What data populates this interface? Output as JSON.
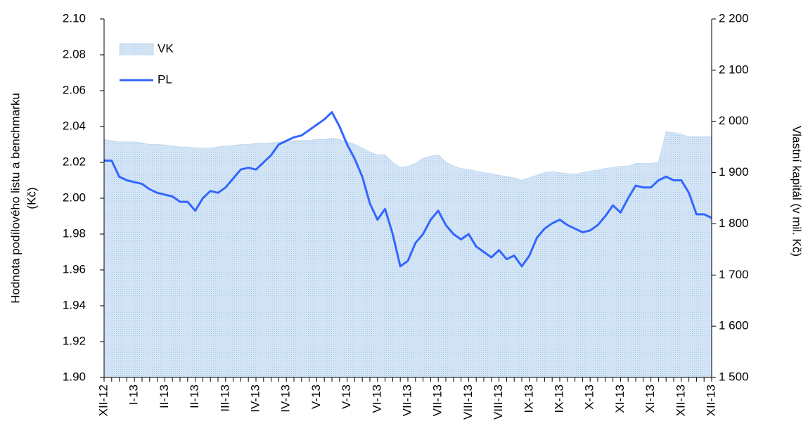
{
  "chart_data": {
    "type": "line",
    "ylabel": [
      "Hodnota podílového listu a benchmarku",
      "(Kč)"
    ],
    "y2label": "Vlastní kapitál (v mil. Kč)",
    "categories": [
      "XII-12",
      null,
      null,
      null,
      "I-13",
      null,
      null,
      null,
      "II-13",
      null,
      null,
      null,
      "II-13",
      null,
      null,
      null,
      "III-13",
      null,
      null,
      null,
      "IV-13",
      null,
      null,
      null,
      "IV-13",
      null,
      null,
      null,
      "V-13",
      null,
      null,
      null,
      "V-13",
      null,
      null,
      null,
      "VI-13",
      null,
      null,
      null,
      "VII-13",
      null,
      null,
      null,
      "VII-13",
      null,
      null,
      null,
      "VIII-13",
      null,
      null,
      null,
      "VIII-13",
      null,
      null,
      null,
      "IX-13",
      null,
      null,
      null,
      "IX-13",
      null,
      null,
      null,
      "X-13",
      null,
      null,
      null,
      "XI-13",
      null,
      null,
      null,
      "XI-13",
      null,
      null,
      null,
      "XII-13",
      null,
      null,
      null,
      "XII-13"
    ],
    "series": [
      {
        "name": "VK",
        "type": "area",
        "axis": "y2",
        "color": "#c6dcf2",
        "values": [
          1965,
          1962,
          1960,
          1960,
          1960,
          1958,
          1955,
          1955,
          1954,
          1952,
          1950,
          1950,
          1948,
          1948,
          1948,
          1950,
          1952,
          1953,
          1955,
          1955,
          1957,
          1957,
          1958,
          1960,
          1960,
          1962,
          1963,
          1963,
          1965,
          1965,
          1967,
          1965,
          1960,
          1955,
          1948,
          1940,
          1935,
          1935,
          1920,
          1910,
          1912,
          1918,
          1928,
          1932,
          1935,
          1920,
          1913,
          1908,
          1906,
          1903,
          1900,
          1898,
          1895,
          1892,
          1890,
          1885,
          1890,
          1895,
          1900,
          1902,
          1900,
          1898,
          1897,
          1900,
          1903,
          1905,
          1908,
          1910,
          1912,
          1913,
          1918,
          1918,
          1918,
          1920,
          1980,
          1978,
          1975,
          1970,
          1970,
          1970,
          1970
        ]
      },
      {
        "name": "PL",
        "type": "line",
        "color": "#3366ff",
        "values": [
          2.021,
          2.021,
          2.012,
          2.01,
          2.009,
          2.008,
          2.005,
          2.003,
          2.002,
          2.001,
          1.998,
          1.998,
          1.993,
          2.0,
          2.004,
          2.003,
          2.006,
          2.011,
          2.016,
          2.017,
          2.016,
          2.02,
          2.024,
          2.03,
          2.032,
          2.034,
          2.035,
          2.038,
          2.041,
          2.044,
          2.048,
          2.04,
          2.03,
          2.022,
          2.012,
          1.997,
          1.988,
          1.994,
          1.98,
          1.962,
          1.965,
          1.975,
          1.98,
          1.988,
          1.993,
          1.985,
          1.98,
          1.977,
          1.98,
          1.973,
          1.97,
          1.967,
          1.971,
          1.966,
          1.968,
          1.962,
          1.968,
          1.978,
          1.983,
          1.986,
          1.988,
          1.985,
          1.983,
          1.981,
          1.982,
          1.985,
          1.99,
          1.996,
          1.992,
          2.0,
          2.007,
          2.006,
          2.006,
          2.01,
          2.012,
          2.01,
          2.01,
          2.003,
          1.991,
          1.991,
          1.989
        ]
      }
    ],
    "ylim": [
      1.9,
      2.1
    ],
    "yticks": [
      {
        "value": 1.9,
        "label": "1.90"
      },
      1.92,
      1.94,
      1.96,
      1.98,
      {
        "value": 2.0,
        "label": "2.00"
      },
      2.02,
      2.04,
      2.06,
      2.08,
      {
        "value": 2.1,
        "label": "2.10"
      }
    ],
    "y2lim": [
      1500,
      2200
    ],
    "y2ticks": [
      {
        "value": 1500,
        "label": "1 500"
      },
      {
        "value": 1600,
        "label": "1 600"
      },
      {
        "value": 1700,
        "label": "1 700"
      },
      {
        "value": 1800,
        "label": "1 800"
      },
      {
        "value": 1900,
        "label": "1 900"
      },
      {
        "value": 2000,
        "label": "2 000"
      },
      {
        "value": 2100,
        "label": "2 100"
      },
      {
        "value": 2200,
        "label": "2 200"
      }
    ],
    "legend": "top-left",
    "grid": false
  }
}
